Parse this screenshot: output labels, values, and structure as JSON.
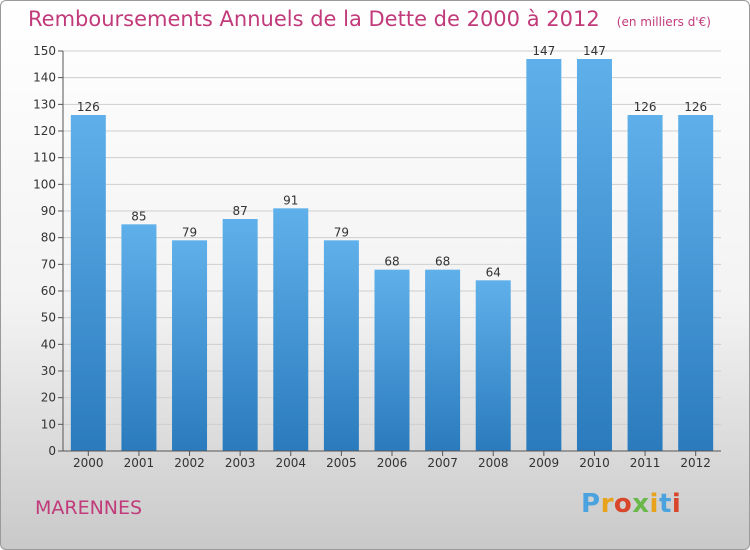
{
  "header": {
    "title": "Remboursements Annuels de la Dette de 2000 à 2012",
    "unit": "(en milliers d'€)"
  },
  "footer": {
    "place": "MARENNES",
    "logo_text": "Proxiti"
  },
  "colors": {
    "title": "#c13a7a",
    "bar_top": "#5fb0ea",
    "bar_bottom": "#2a7bbd",
    "logo_letters": [
      "#4aa3df",
      "#e8a21c",
      "#d8472b",
      "#6ab84a",
      "#e8a21c",
      "#4aa3df",
      "#d8472b"
    ]
  },
  "chart_data": {
    "type": "bar",
    "categories": [
      "2000",
      "2001",
      "2002",
      "2003",
      "2004",
      "2005",
      "2006",
      "2007",
      "2008",
      "2009",
      "2010",
      "2011",
      "2012"
    ],
    "values": [
      126,
      85,
      79,
      87,
      91,
      79,
      68,
      68,
      64,
      147,
      147,
      126,
      126
    ],
    "ylim": [
      0,
      150
    ],
    "yticks": [
      0,
      10,
      20,
      30,
      40,
      50,
      60,
      70,
      80,
      90,
      100,
      110,
      120,
      130,
      140,
      150
    ],
    "grid": true
  }
}
